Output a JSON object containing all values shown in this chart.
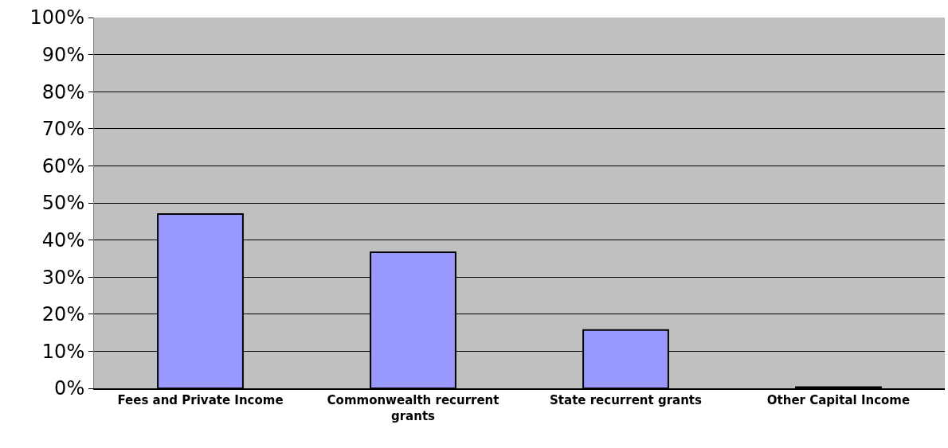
{
  "chart_data": {
    "type": "bar",
    "categories": [
      "Fees and Private Income",
      "Commonwealth recurrent grants",
      "State recurrent grants",
      "Other Capital Income"
    ],
    "values": [
      47,
      36.7,
      15.7,
      0.3
    ],
    "color": "#9999ff",
    "ylim": [
      0,
      100
    ],
    "yticks": [
      {
        "value": 0,
        "label": "0%"
      },
      {
        "value": 10,
        "label": "10%"
      },
      {
        "value": 20,
        "label": "20%"
      },
      {
        "value": 30,
        "label": "30%"
      },
      {
        "value": 40,
        "label": "40%"
      },
      {
        "value": 50,
        "label": "50%"
      },
      {
        "value": 60,
        "label": "60%"
      },
      {
        "value": 70,
        "label": "70%"
      },
      {
        "value": 80,
        "label": "80%"
      },
      {
        "value": 90,
        "label": "90%"
      },
      {
        "value": 100,
        "label": "100%"
      }
    ],
    "grid": "y",
    "legend": false
  }
}
